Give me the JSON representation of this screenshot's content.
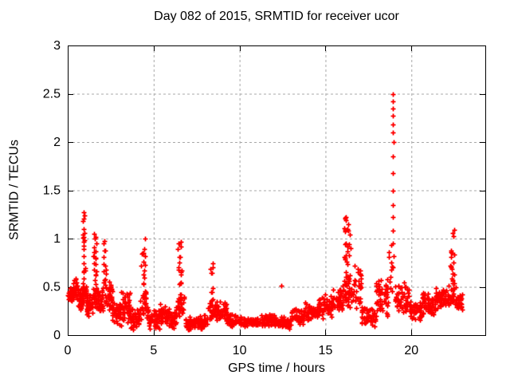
{
  "chart_data": {
    "type": "scatter",
    "title": "Day 082 of 2015, SRMTID for receiver ucor",
    "xlabel": "GPS time / hours",
    "ylabel": "SRMTID / TECUs",
    "xlim": [
      0,
      24.3
    ],
    "ylim": [
      0,
      3
    ],
    "xticks": [
      0,
      5,
      10,
      15,
      20
    ],
    "yticks": [
      0,
      0.5,
      1,
      1.5,
      2,
      2.5,
      3
    ],
    "grid": true,
    "legend": "none",
    "marker": {
      "shape": "plus",
      "color": "#ff0000",
      "size": 7
    },
    "grid_color": "#a8a8a8",
    "axis_color": "#000000",
    "background": "#ffffff",
    "seed": 11,
    "series": [
      {
        "name": "SRMTID",
        "comment": "bands = [x_start, x_end, y_min, y_max, n_points, dist(t=triangular,u=uniform,l=low-biased)] read from the dense scatter envelope",
        "bands": [
          [
            0.0,
            0.3,
            0.33,
            0.52,
            40,
            "t"
          ],
          [
            0.3,
            0.6,
            0.35,
            0.6,
            45,
            "t"
          ],
          [
            0.6,
            0.85,
            0.25,
            0.5,
            30,
            "t"
          ],
          [
            0.85,
            1.1,
            0.3,
            0.6,
            25,
            "t"
          ],
          [
            0.88,
            1.02,
            0.45,
            1.3,
            26,
            "u"
          ],
          [
            1.1,
            1.45,
            0.18,
            0.45,
            40,
            "t"
          ],
          [
            1.45,
            1.8,
            0.25,
            0.55,
            30,
            "t"
          ],
          [
            1.5,
            1.68,
            0.35,
            1.05,
            22,
            "u"
          ],
          [
            1.8,
            2.05,
            0.22,
            0.5,
            28,
            "t"
          ],
          [
            2.08,
            2.25,
            0.35,
            1.0,
            20,
            "u"
          ],
          [
            2.25,
            2.6,
            0.2,
            0.6,
            40,
            "t"
          ],
          [
            2.6,
            3.1,
            0.1,
            0.38,
            45,
            "t"
          ],
          [
            3.1,
            3.6,
            0.12,
            0.48,
            45,
            "t"
          ],
          [
            3.6,
            4.2,
            0.05,
            0.3,
            50,
            "t"
          ],
          [
            4.2,
            4.7,
            0.15,
            0.4,
            25,
            "t"
          ],
          [
            4.28,
            4.55,
            0.3,
            0.9,
            24,
            "u"
          ],
          [
            4.7,
            5.35,
            0.05,
            0.28,
            50,
            "t"
          ],
          [
            5.35,
            5.95,
            0.08,
            0.33,
            45,
            "t"
          ],
          [
            5.95,
            6.3,
            0.05,
            0.25,
            35,
            "t"
          ],
          [
            6.3,
            6.8,
            0.15,
            0.45,
            28,
            "t"
          ],
          [
            6.4,
            6.62,
            0.3,
            1.0,
            22,
            "u"
          ],
          [
            6.8,
            7.6,
            0.04,
            0.2,
            60,
            "t"
          ],
          [
            7.6,
            8.15,
            0.05,
            0.22,
            45,
            "t"
          ],
          [
            8.15,
            8.6,
            0.12,
            0.35,
            25,
            "t"
          ],
          [
            8.25,
            8.48,
            0.28,
            0.75,
            18,
            "u"
          ],
          [
            8.6,
            9.3,
            0.1,
            0.38,
            50,
            "t"
          ],
          [
            9.3,
            10.2,
            0.07,
            0.22,
            60,
            "t"
          ],
          [
            10.2,
            11.2,
            0.08,
            0.2,
            65,
            "t"
          ],
          [
            11.2,
            12.2,
            0.08,
            0.22,
            65,
            "t"
          ],
          [
            12.2,
            13.0,
            0.06,
            0.2,
            55,
            "t"
          ],
          [
            13.0,
            13.8,
            0.1,
            0.28,
            55,
            "t"
          ],
          [
            13.8,
            14.6,
            0.14,
            0.35,
            55,
            "t"
          ],
          [
            14.6,
            15.4,
            0.17,
            0.42,
            55,
            "t"
          ],
          [
            15.4,
            16.0,
            0.2,
            0.5,
            45,
            "t"
          ],
          [
            16.0,
            16.55,
            0.25,
            0.55,
            30,
            "t"
          ],
          [
            16.1,
            16.45,
            0.4,
            1.32,
            40,
            "u"
          ],
          [
            16.55,
            17.1,
            0.25,
            0.75,
            35,
            "t"
          ],
          [
            17.1,
            17.9,
            0.08,
            0.32,
            55,
            "t"
          ],
          [
            17.9,
            18.65,
            0.15,
            0.62,
            60,
            "t"
          ],
          [
            18.7,
            18.9,
            0.3,
            0.95,
            10,
            "u"
          ],
          [
            19.05,
            19.9,
            0.18,
            0.55,
            55,
            "t"
          ],
          [
            19.9,
            20.6,
            0.12,
            0.38,
            45,
            "t"
          ],
          [
            20.6,
            21.4,
            0.18,
            0.45,
            55,
            "t"
          ],
          [
            21.4,
            22.1,
            0.22,
            0.52,
            50,
            "t"
          ],
          [
            22.1,
            22.6,
            0.25,
            0.55,
            25,
            "t"
          ],
          [
            22.25,
            22.5,
            0.35,
            1.15,
            24,
            "u"
          ],
          [
            22.6,
            22.95,
            0.22,
            0.45,
            30,
            "t"
          ]
        ],
        "spike_points": [
          [
            18.9,
            0.7
          ],
          [
            18.95,
            0.82
          ],
          [
            18.92,
            0.95
          ],
          [
            18.93,
            1.08
          ],
          [
            18.91,
            1.22
          ],
          [
            18.94,
            1.35
          ],
          [
            18.92,
            1.5
          ],
          [
            18.93,
            1.68
          ],
          [
            18.92,
            1.85
          ],
          [
            18.95,
            2.0
          ],
          [
            18.92,
            2.1
          ],
          [
            18.93,
            2.18
          ],
          [
            18.92,
            2.27
          ],
          [
            18.94,
            2.35
          ],
          [
            18.93,
            2.42
          ],
          [
            18.93,
            2.5
          ]
        ],
        "outliers": [
          [
            4.52,
            1.0
          ],
          [
            12.42,
            0.51
          ]
        ]
      }
    ]
  }
}
